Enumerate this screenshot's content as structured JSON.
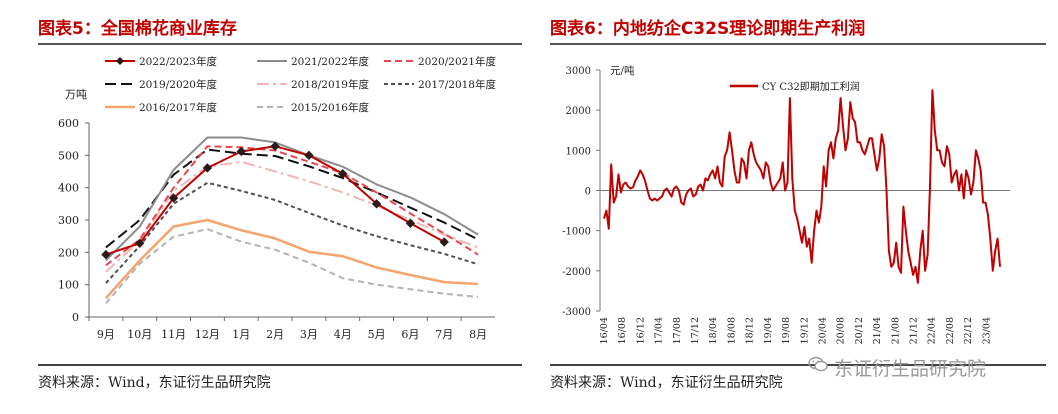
{
  "left": {
    "title": "图表5：全国棉花商业库存",
    "source": "资料来源：Wind，东证衍生品研究院",
    "chart_data": {
      "type": "line",
      "ylabel": "万吨",
      "ylim": [
        0,
        600
      ],
      "yticks": [
        "0",
        "100",
        "200",
        "300",
        "400",
        "500",
        "600"
      ],
      "categories": [
        "9月",
        "10月",
        "11月",
        "12月",
        "1月",
        "2月",
        "3月",
        "4月",
        "5月",
        "6月",
        "7月",
        "8月"
      ],
      "legend_position": "top",
      "series": [
        {
          "name": "2022/2023年度",
          "color": "#c00000",
          "dash": "",
          "width": 2,
          "marker": "diamond",
          "values": [
            193,
            228,
            368,
            461,
            512,
            528,
            500,
            443,
            350,
            290,
            232,
            null
          ]
        },
        {
          "name": "2021/2022年度",
          "color": "#8c8c8c",
          "dash": "",
          "width": 2,
          "values": [
            175,
            280,
            455,
            555,
            555,
            540,
            500,
            465,
            410,
            370,
            318,
            255
          ]
        },
        {
          "name": "2020/2021年度",
          "color": "#e8474f",
          "dash": "7,4",
          "width": 2,
          "values": [
            160,
            240,
            400,
            528,
            525,
            515,
            480,
            445,
            385,
            320,
            258,
            193
          ]
        },
        {
          "name": "2019/2020年度",
          "color": "#111111",
          "dash": "11,5",
          "width": 2,
          "values": [
            215,
            300,
            440,
            518,
            505,
            498,
            466,
            430,
            385,
            338,
            292,
            240
          ]
        },
        {
          "name": "2018/2019年度",
          "color": "#f0b6b6",
          "dash": "12,4,3,4",
          "width": 2,
          "values": [
            140,
            235,
            390,
            465,
            480,
            450,
            420,
            385,
            345,
            300,
            255,
            215
          ]
        },
        {
          "name": "2017/2018年度",
          "color": "#505050",
          "dash": "4,3",
          "width": 2,
          "values": [
            105,
            220,
            350,
            415,
            390,
            362,
            322,
            283,
            250,
            222,
            195,
            163
          ]
        },
        {
          "name": "2016/2017年度",
          "color": "#f4a46c",
          "dash": "",
          "width": 2.5,
          "values": [
            58,
            175,
            280,
            300,
            268,
            243,
            202,
            188,
            153,
            130,
            108,
            102
          ]
        },
        {
          "name": "2015/2016年度",
          "color": "#b3b3b3",
          "dash": "6,4",
          "width": 2,
          "values": [
            42,
            165,
            248,
            272,
            233,
            208,
            168,
            120,
            100,
            86,
            72,
            62
          ]
        }
      ]
    }
  },
  "right": {
    "title": "图表6：内地纺企C32S理论即期生产利润",
    "source": "资料来源：Wind，东证衍生品研究院",
    "chart_data": {
      "type": "line",
      "ylabel": "元/吨",
      "ylim": [
        -3000,
        3000
      ],
      "yticks": [
        "-3000",
        "-2000",
        "-1000",
        "0",
        "1000",
        "2000",
        "3000"
      ],
      "xticks": [
        "16/04",
        "16/08",
        "16/12",
        "17/04",
        "17/08",
        "17/12",
        "18/04",
        "18/08",
        "18/12",
        "19/04",
        "19/08",
        "19/12",
        "20/04",
        "20/08",
        "20/12",
        "21/04",
        "21/08",
        "21/12",
        "22/04",
        "22/08",
        "22/12",
        "23/04"
      ],
      "legend_position": "top-center",
      "series": [
        {
          "name": "CY C32即期加工利润",
          "color": "#c00000",
          "x_start_month": "2016-04",
          "values": [
            -700,
            -500,
            -950,
            650,
            -300,
            -150,
            400,
            -50,
            150,
            200,
            100,
            50,
            80,
            250,
            350,
            500,
            400,
            250,
            0,
            -200,
            -250,
            -200,
            -250,
            -200,
            -150,
            0,
            50,
            -50,
            -150,
            50,
            100,
            0,
            -300,
            -350,
            -100,
            0,
            50,
            -150,
            -100,
            100,
            150,
            0,
            300,
            250,
            400,
            500,
            300,
            600,
            200,
            100,
            850,
            1000,
            1450,
            1000,
            500,
            200,
            200,
            800,
            700,
            300,
            1000,
            1200,
            900,
            700,
            600,
            500,
            300,
            700,
            600,
            200,
            0,
            100,
            200,
            300,
            700,
            0,
            200,
            2300,
            300,
            -500,
            -700,
            -1000,
            -1300,
            -900,
            -1400,
            -1200,
            -1800,
            -1000,
            -500,
            -800,
            -400,
            600,
            100,
            1000,
            1200,
            800,
            1300,
            1500,
            2300,
            1600,
            1000,
            1300,
            2200,
            1800,
            1700,
            1200,
            1200,
            1000,
            900,
            1100,
            1300,
            1300,
            900,
            500,
            800,
            1400,
            1100,
            0,
            -1500,
            -1900,
            -1800,
            -1300,
            -1900,
            -2050,
            -400,
            -1000,
            -1500,
            -1800,
            -2100,
            -1900,
            -2300,
            -1500,
            -1000,
            -2000,
            -1600,
            100,
            2500,
            1500,
            1000,
            1000,
            700,
            600,
            1100,
            900,
            200,
            400,
            500,
            0,
            400,
            -200,
            500,
            300,
            -100,
            200,
            1000,
            800,
            500,
            -300,
            -300,
            -600,
            -1200,
            -2000,
            -1500,
            -1200,
            -1900
          ]
        }
      ]
    }
  },
  "watermark": {
    "text": "东证衍生品研究院",
    "icon": "wechat-icon"
  }
}
